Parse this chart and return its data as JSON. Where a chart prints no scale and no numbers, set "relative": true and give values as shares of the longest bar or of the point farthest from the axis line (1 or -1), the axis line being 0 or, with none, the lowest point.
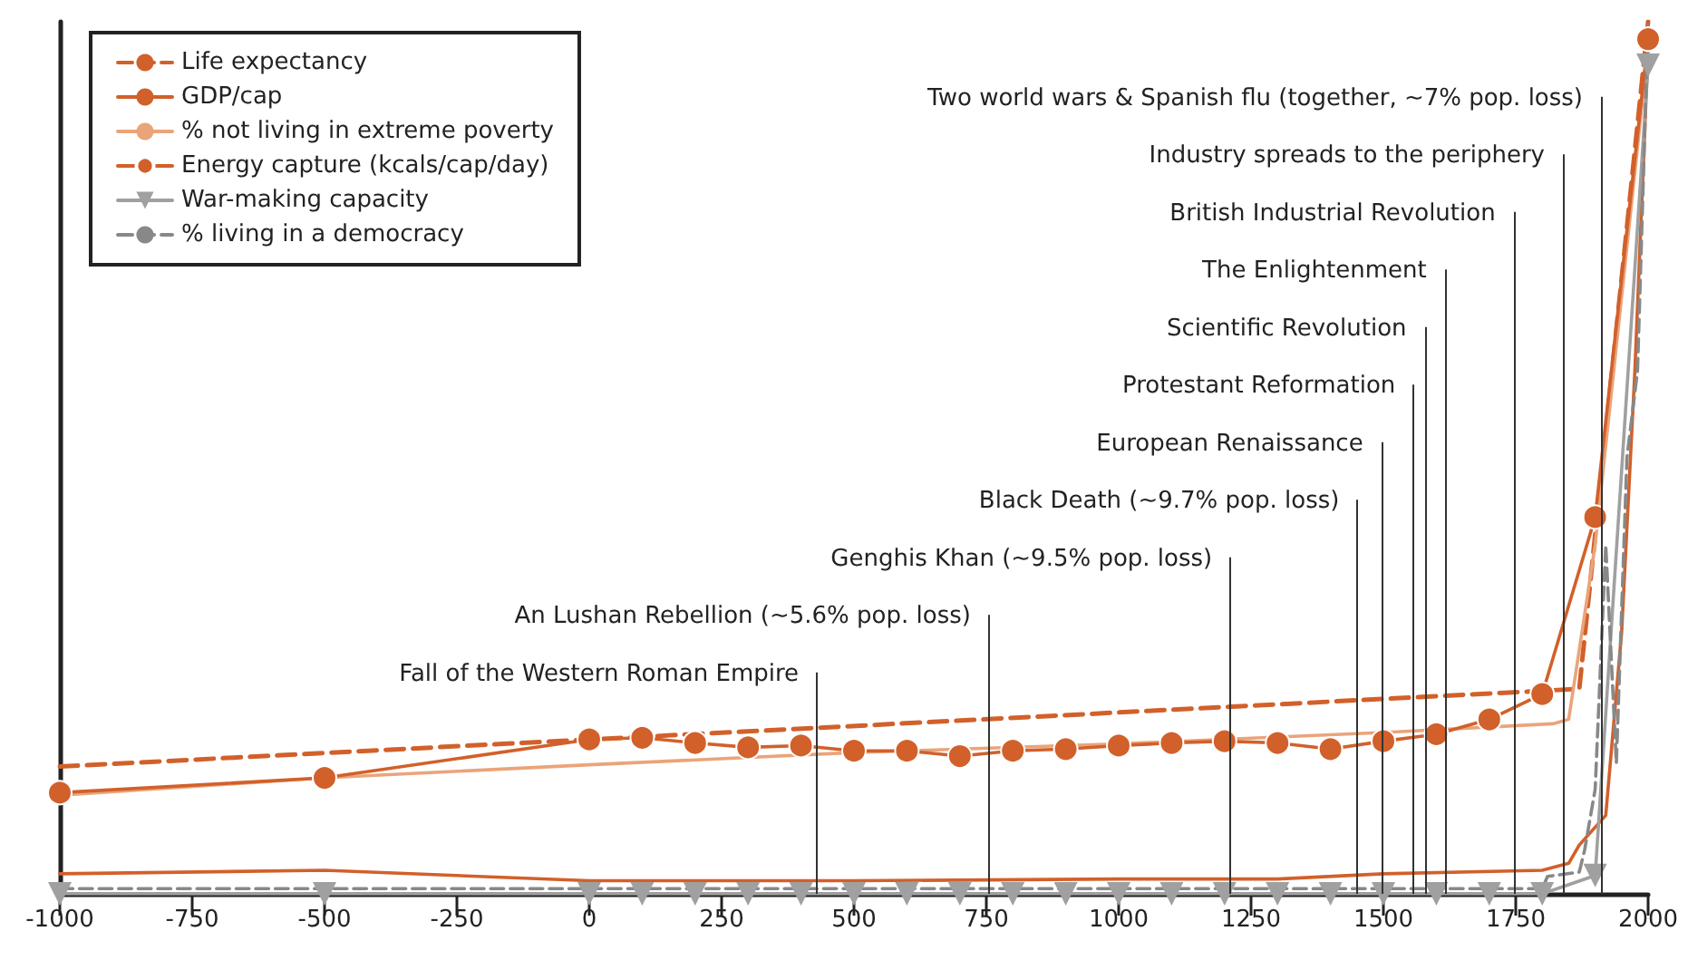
{
  "chart_data": {
    "type": "line",
    "relative": true,
    "xlim": [
      -1000,
      2000
    ],
    "xticks": [
      -1000,
      -750,
      -500,
      -250,
      0,
      250,
      500,
      750,
      1000,
      1250,
      1500,
      1750,
      2000
    ],
    "grid": false,
    "legend": "top left",
    "series": [
      {
        "name": "Life expectancy",
        "color": "#d2602a",
        "line_style": "dashed",
        "marker": "none",
        "x": [
          -1000,
          1870,
          2000
        ],
        "values": [
          0.146,
          0.235,
          1.0
        ]
      },
      {
        "name": "GDP/cap",
        "color": "#d2602a",
        "line_style": "solid",
        "marker": "none",
        "x": [
          -1000,
          -500,
          0,
          500,
          1000,
          1300,
          1500,
          1800,
          1850,
          1870,
          1920,
          1950,
          1975,
          2000
        ],
        "values": [
          0.023,
          0.027,
          0.015,
          0.015,
          0.017,
          0.017,
          0.023,
          0.027,
          0.035,
          0.056,
          0.09,
          0.3,
          0.6,
          0.97
        ]
      },
      {
        "name": "% not living in extreme poverty",
        "color": "#eaa47a",
        "line_style": "solid",
        "marker": "none",
        "x": [
          -1000,
          -500,
          0,
          500,
          1000,
          1500,
          1820,
          1850,
          1900,
          2000
        ],
        "values": [
          0.113,
          0.133,
          0.148,
          0.162,
          0.172,
          0.185,
          0.195,
          0.2,
          0.4,
          0.97
        ]
      },
      {
        "name": "Energy capture (kcals/cap/day)",
        "color": "#d2602a",
        "line_style": "solid",
        "marker": "circle",
        "x": [
          -1000,
          -500,
          0,
          100,
          200,
          300,
          400,
          500,
          600,
          700,
          800,
          900,
          1000,
          1100,
          1200,
          1300,
          1400,
          1500,
          1600,
          1700,
          1800,
          1900,
          2000
        ],
        "values": [
          0.116,
          0.133,
          0.177,
          0.179,
          0.173,
          0.168,
          0.17,
          0.164,
          0.164,
          0.158,
          0.164,
          0.166,
          0.17,
          0.173,
          0.175,
          0.173,
          0.166,
          0.175,
          0.183,
          0.2,
          0.229,
          0.432,
          0.98
        ]
      },
      {
        "name": "War-making capacity",
        "color": "#a0a0a0",
        "line_style": "solid",
        "marker": "triangle",
        "x": [
          -1000,
          -500,
          0,
          100,
          200,
          300,
          400,
          500,
          600,
          700,
          800,
          900,
          1000,
          1100,
          1200,
          1300,
          1400,
          1500,
          1600,
          1700,
          1800,
          1900,
          2000
        ],
        "values": [
          0,
          0,
          0,
          0,
          0,
          0,
          0,
          0,
          0,
          0,
          0,
          0,
          0,
          0,
          0,
          0,
          0,
          0,
          0,
          0,
          0,
          0.021,
          0.95
        ]
      },
      {
        "name": "% living in a democracy",
        "color": "#888888",
        "line_style": "dashed",
        "marker": "none",
        "x": [
          -1000,
          1800,
          1810,
          1870,
          1880,
          1900,
          1920,
          1940,
          1960,
          1980,
          2000
        ],
        "values": [
          0.006,
          0.006,
          0.02,
          0.025,
          0.05,
          0.12,
          0.4,
          0.15,
          0.5,
          0.6,
          1.0
        ]
      }
    ],
    "ref_lines": [
      {
        "axis": "x",
        "value": 430,
        "label": "Fall of the Western Roman Empire"
      },
      {
        "axis": "x",
        "value": 755,
        "label": "An Lushan Rebellion (~5.6% pop. loss)"
      },
      {
        "axis": "x",
        "value": 1211,
        "label": "Genghis Khan (~9.5% pop. loss)"
      },
      {
        "axis": "x",
        "value": 1451,
        "label": "Black Death (~9.7% pop. loss)"
      },
      {
        "axis": "x",
        "value": 1496,
        "label": "European Renaissance"
      },
      {
        "axis": "x",
        "value": 1557,
        "label": "Protestant Reformation"
      },
      {
        "axis": "x",
        "value": 1578,
        "label": "Scientific Revolution"
      },
      {
        "axis": "x",
        "value": 1616,
        "label": "The Enlightenment"
      },
      {
        "axis": "x",
        "value": 1746,
        "label": "British Industrial Revolution"
      },
      {
        "axis": "x",
        "value": 1839,
        "label": "Industry spreads to the periphery"
      },
      {
        "axis": "x",
        "value": 1911,
        "label": "Two world wars & Spanish flu (together, ~7% pop. loss)"
      }
    ]
  }
}
